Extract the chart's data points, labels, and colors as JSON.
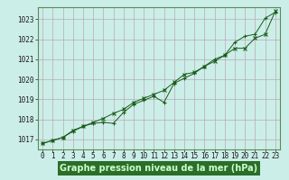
{
  "xlabel": "Graphe pression niveau de la mer (hPa)",
  "bg_color": "#cceee8",
  "plot_bg_color": "#cceee8",
  "grid_color": "#b8a8b8",
  "line_color": "#1a5c1a",
  "marker_color": "#1a5c1a",
  "xlabel_bg": "#2a6e2a",
  "xlabel_fg": "#ccffcc",
  "hours": [
    0,
    1,
    2,
    3,
    4,
    5,
    6,
    7,
    8,
    9,
    10,
    11,
    12,
    13,
    14,
    15,
    16,
    17,
    18,
    19,
    20,
    21,
    22,
    23
  ],
  "values1": [
    1016.8,
    1016.95,
    1017.1,
    1017.4,
    1017.65,
    1017.8,
    1017.85,
    1017.8,
    1018.35,
    1018.75,
    1018.95,
    1019.15,
    1018.85,
    1019.8,
    1020.05,
    1020.3,
    1020.65,
    1021.0,
    1021.2,
    1021.85,
    1022.15,
    1022.25,
    1023.05,
    1023.35
  ],
  "values2": [
    1016.8,
    1016.95,
    1017.1,
    1017.45,
    1017.65,
    1017.85,
    1018.05,
    1018.3,
    1018.5,
    1018.85,
    1019.05,
    1019.25,
    1019.45,
    1019.85,
    1020.25,
    1020.35,
    1020.65,
    1020.9,
    1021.2,
    1021.55,
    1021.55,
    1022.05,
    1022.25,
    1023.4
  ],
  "ylim": [
    1016.5,
    1023.6
  ],
  "xlim": [
    -0.5,
    23.5
  ],
  "yticks": [
    1017,
    1018,
    1019,
    1020,
    1021,
    1022,
    1023
  ],
  "xticks": [
    0,
    1,
    2,
    3,
    4,
    5,
    6,
    7,
    8,
    9,
    10,
    11,
    12,
    13,
    14,
    15,
    16,
    17,
    18,
    19,
    20,
    21,
    22,
    23
  ],
  "tick_fontsize": 5.5,
  "label_fontsize": 7,
  "border_color": "#5a8a5a"
}
